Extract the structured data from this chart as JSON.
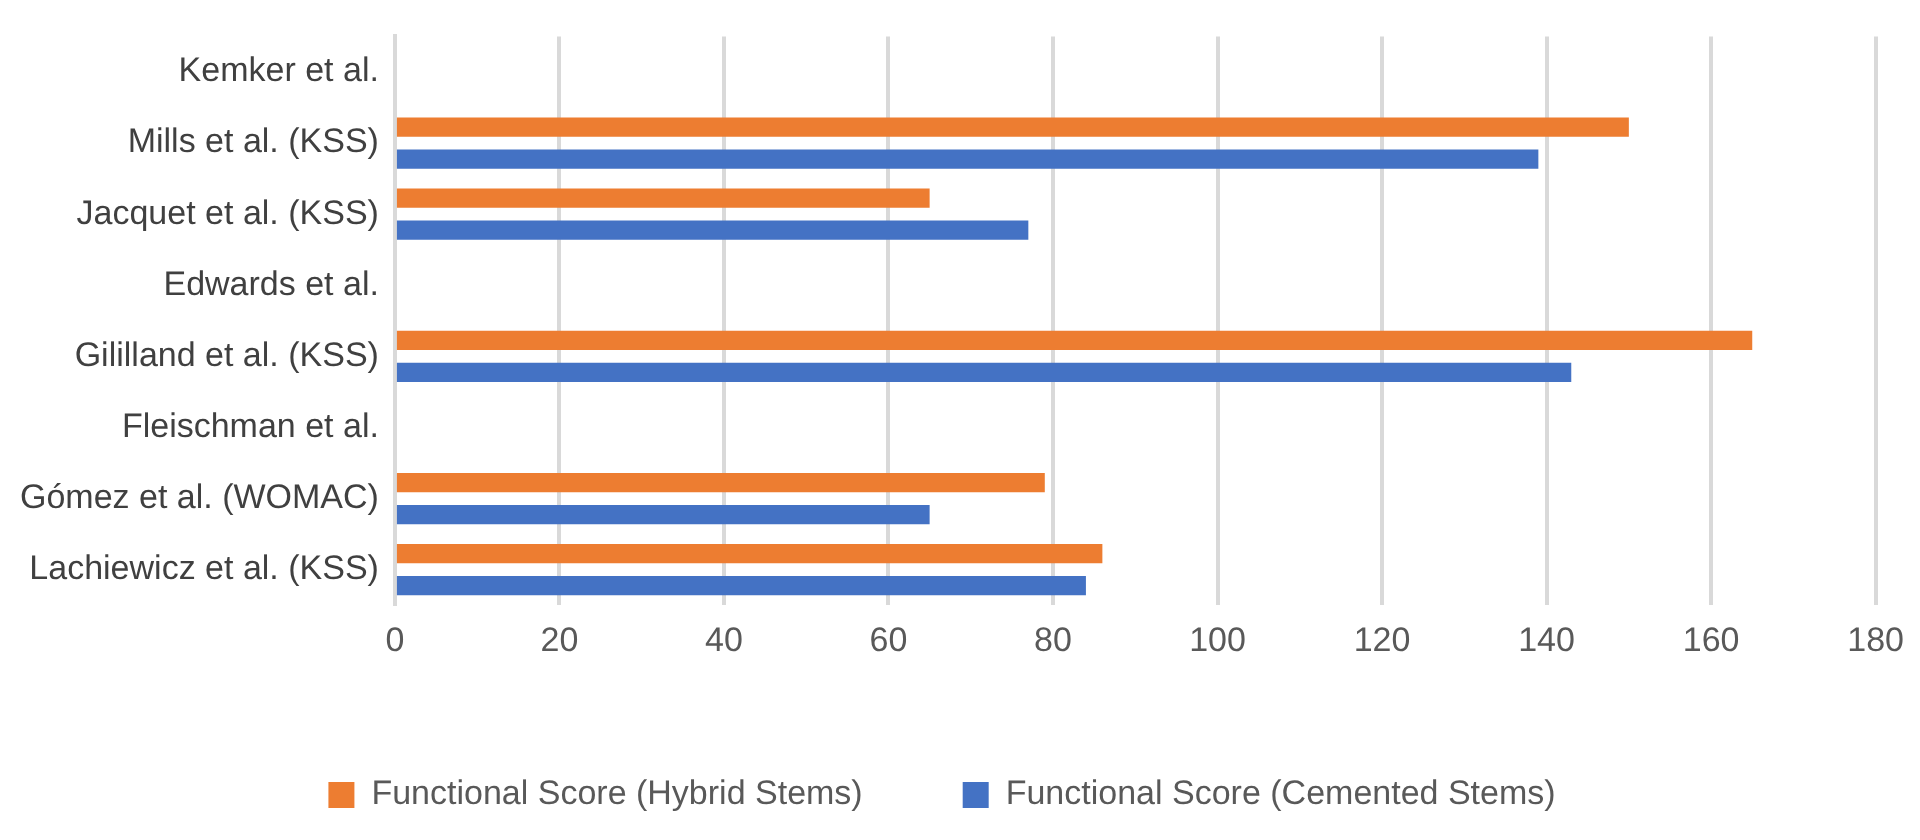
{
  "chart_data": {
    "type": "bar",
    "orientation": "horizontal",
    "categories": [
      "Kemker et al.",
      "Mills et al. (KSS)",
      "Jacquet et al. (KSS)",
      "Edwards et al.",
      "Gililland et al. (KSS)",
      "Fleischman et al.",
      "Gómez et al. (WOMAC)",
      "Lachiewicz et al. (KSS)"
    ],
    "series": [
      {
        "name": "Functional Score (Hybrid Stems)",
        "color": "#ed7d31",
        "values": [
          null,
          150,
          65,
          null,
          165,
          null,
          79,
          86
        ]
      },
      {
        "name": "Functional Score (Cemented Stems)",
        "color": "#4472c4",
        "values": [
          null,
          139,
          77,
          null,
          143,
          null,
          65,
          84
        ]
      }
    ],
    "xlim": [
      0,
      180
    ],
    "xticks": [
      0,
      20,
      40,
      60,
      80,
      100,
      120,
      140,
      160,
      180
    ],
    "grid": "x",
    "legend": "bottom"
  }
}
